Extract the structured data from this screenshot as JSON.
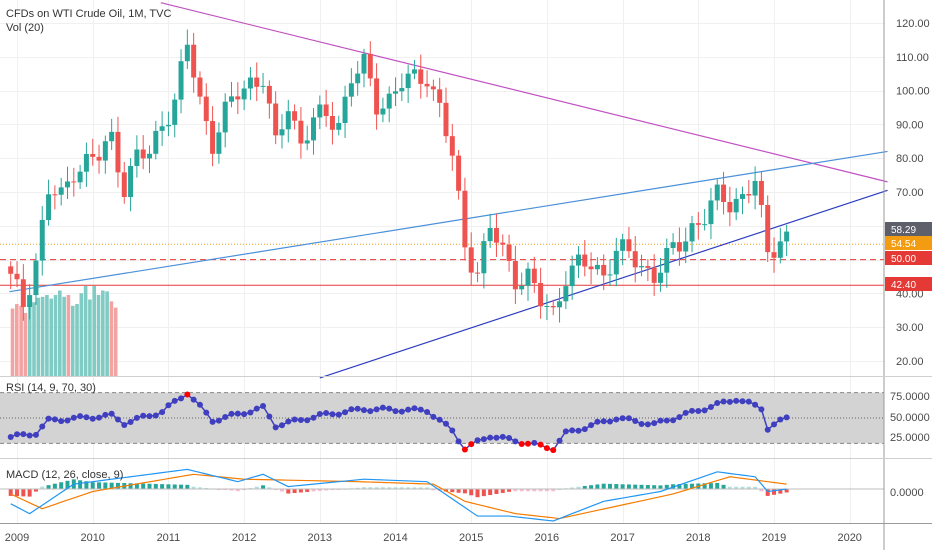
{
  "header": {
    "title": "CFDs on WTI Crude Oil, 1M, TVC",
    "volume_label": "Vol (20)"
  },
  "rsi": {
    "label": "RSI (14, 9, 70, 30)",
    "ticks": [
      "75.0000",
      "50.0000",
      "25.0000"
    ]
  },
  "macd": {
    "label": "MACD (12, 26, close, 9)",
    "tick": "0.0000"
  },
  "price_tags": {
    "last": "58.29",
    "orange": "54.54",
    "dash_red": "50.00",
    "red": "42.40"
  },
  "colors": {
    "up": "#26a69a",
    "down": "#ef5350",
    "rsi_line": "#3f3fbf",
    "rsi_extreme": "#ff0000",
    "resistance_purple": "#c152c1",
    "trend_blue": "#2d3dbf",
    "trend_lightblue": "#4a90d9",
    "level_orange": "#f39c12",
    "level_red": "#e53935",
    "tag_last": "#5d606b",
    "macd_line": "#2196f3",
    "signal_line": "#f57c00"
  },
  "chart_data": [
    {
      "type": "candlestick",
      "title": "CFDs on WTI Crude Oil, 1M, TVC",
      "x_ticks": [
        "2009",
        "2010",
        "2011",
        "2012",
        "2013",
        "2014",
        "2015",
        "2016",
        "2017",
        "2018",
        "2019",
        "2020"
      ],
      "y_ticks": [
        "20.00",
        "30.00",
        "40.00",
        "50.00",
        "60.00",
        "70.00",
        "80.00",
        "90.00",
        "100.00",
        "110.00",
        "120.00"
      ],
      "ylim": [
        15,
        125
      ],
      "x_start": 2008.917,
      "close_anchors": [
        [
          2008.917,
          44
        ],
        [
          2009.083,
          37
        ],
        [
          2009.25,
          50
        ],
        [
          2009.417,
          70
        ],
        [
          2009.583,
          68
        ],
        [
          2009.75,
          77
        ],
        [
          2009.917,
          79
        ],
        [
          2010.083,
          80
        ],
        [
          2010.25,
          86
        ],
        [
          2010.417,
          72
        ],
        [
          2010.583,
          80
        ],
        [
          2010.75,
          81
        ],
        [
          2010.917,
          91
        ],
        [
          2011.083,
          97
        ],
        [
          2011.25,
          113
        ],
        [
          2011.417,
          97
        ],
        [
          2011.583,
          85
        ],
        [
          2011.75,
          93
        ],
        [
          2011.917,
          99
        ],
        [
          2012.083,
          103
        ],
        [
          2012.25,
          104
        ],
        [
          2012.417,
          83
        ],
        [
          2012.583,
          96
        ],
        [
          2012.75,
          85
        ],
        [
          2012.917,
          91
        ],
        [
          2013.083,
          92
        ],
        [
          2013.25,
          91
        ],
        [
          2013.417,
          104
        ],
        [
          2013.583,
          107
        ],
        [
          2013.75,
          96
        ],
        [
          2013.917,
          98
        ],
        [
          2014.083,
          102
        ],
        [
          2014.25,
          103
        ],
        [
          2014.417,
          105
        ],
        [
          2014.583,
          95
        ],
        [
          2014.75,
          80
        ],
        [
          2014.917,
          54
        ],
        [
          2015.083,
          47
        ],
        [
          2015.25,
          59
        ],
        [
          2015.417,
          52
        ],
        [
          2015.583,
          45
        ],
        [
          2015.75,
          45
        ],
        [
          2015.917,
          37
        ],
        [
          2016.083,
          34
        ],
        [
          2016.25,
          46
        ],
        [
          2016.417,
          48
        ],
        [
          2016.583,
          48
        ],
        [
          2016.75,
          46
        ],
        [
          2016.917,
          53
        ],
        [
          2017.083,
          51
        ],
        [
          2017.25,
          48
        ],
        [
          2017.417,
          46
        ],
        [
          2017.583,
          50
        ],
        [
          2017.75,
          54
        ],
        [
          2017.917,
          60
        ],
        [
          2018.083,
          63
        ],
        [
          2018.25,
          68
        ],
        [
          2018.417,
          67
        ],
        [
          2018.583,
          69
        ],
        [
          2018.75,
          73
        ],
        [
          2018.917,
          51
        ],
        [
          2019.0,
          54
        ],
        [
          2019.083,
          57
        ],
        [
          2019.167,
          58.29
        ]
      ],
      "volume_bars": 25,
      "volume_colors": [
        "down",
        "down",
        "down",
        "down",
        "up",
        "up",
        "up",
        "up",
        "up",
        "up",
        "up",
        "up",
        "up",
        "down",
        "up",
        "up",
        "up",
        "up",
        "up",
        "up",
        "up",
        "up",
        "up",
        "down",
        "down"
      ],
      "trendlines": [
        {
          "name": "resistance",
          "color": "resistance_purple",
          "from": [
            2010.9,
            126
          ],
          "to": [
            2020.5,
            73
          ]
        },
        {
          "name": "support",
          "color": "trend_blue",
          "from": [
            2013.0,
            15
          ],
          "to": [
            2020.5,
            70.5
          ]
        },
        {
          "name": "long-term",
          "color": "trend_lightblue",
          "from": [
            2008.9,
            40.5
          ],
          "to": [
            2020.5,
            82
          ]
        }
      ],
      "levels": [
        {
          "value": 54.54,
          "color": "level_orange",
          "style": "dotted"
        },
        {
          "value": 50.0,
          "color": "level_red",
          "style": "dashed"
        },
        {
          "value": 42.4,
          "color": "level_red",
          "style": "solid"
        }
      ]
    },
    {
      "type": "line",
      "title": "RSI (14, 9, 70, 30)",
      "ylim": [
        20,
        80
      ],
      "bands": [
        30,
        70
      ],
      "mid": 50,
      "anchors": [
        [
          2008.917,
          35
        ],
        [
          2009.25,
          38
        ],
        [
          2009.417,
          48
        ],
        [
          2010.25,
          52
        ],
        [
          2010.417,
          46
        ],
        [
          2010.917,
          55
        ],
        [
          2011.25,
          70
        ],
        [
          2011.583,
          48
        ],
        [
          2012.25,
          58
        ],
        [
          2012.417,
          44
        ],
        [
          2013.0,
          52
        ],
        [
          2013.583,
          57
        ],
        [
          2014.417,
          56
        ],
        [
          2014.75,
          40
        ],
        [
          2014.917,
          26
        ],
        [
          2015.25,
          36
        ],
        [
          2015.583,
          32
        ],
        [
          2016.083,
          26
        ],
        [
          2016.25,
          38
        ],
        [
          2016.917,
          50
        ],
        [
          2017.417,
          45
        ],
        [
          2018.0,
          56
        ],
        [
          2018.5,
          65
        ],
        [
          2018.833,
          58
        ],
        [
          2018.917,
          42
        ],
        [
          2019.167,
          50
        ]
      ]
    },
    {
      "type": "bar+line",
      "title": "MACD (12, 26, close, 9)",
      "ylim": [
        -13,
        11
      ],
      "macd_anchors": [
        [
          2008.917,
          -6
        ],
        [
          2009.167,
          -10
        ],
        [
          2009.75,
          2
        ],
        [
          2011.25,
          8
        ],
        [
          2011.917,
          3
        ],
        [
          2012.25,
          6
        ],
        [
          2012.583,
          1
        ],
        [
          2013.583,
          4
        ],
        [
          2014.417,
          3
        ],
        [
          2014.75,
          -4
        ],
        [
          2015.083,
          -11
        ],
        [
          2015.5,
          -11
        ],
        [
          2016.083,
          -13
        ],
        [
          2016.75,
          -5
        ],
        [
          2017.5,
          -1
        ],
        [
          2018.25,
          7
        ],
        [
          2018.75,
          5
        ],
        [
          2018.917,
          -1
        ],
        [
          2019.167,
          0
        ]
      ],
      "signal_anchors": [
        [
          2008.917,
          -2
        ],
        [
          2009.333,
          -8
        ],
        [
          2010.0,
          -1
        ],
        [
          2011.333,
          6
        ],
        [
          2012.0,
          4
        ],
        [
          2013.5,
          3
        ],
        [
          2014.5,
          2
        ],
        [
          2014.917,
          -5
        ],
        [
          2015.583,
          -10
        ],
        [
          2016.167,
          -12
        ],
        [
          2016.917,
          -7
        ],
        [
          2017.667,
          -2
        ],
        [
          2018.417,
          5
        ],
        [
          2018.917,
          3
        ],
        [
          2019.167,
          2
        ]
      ]
    }
  ]
}
